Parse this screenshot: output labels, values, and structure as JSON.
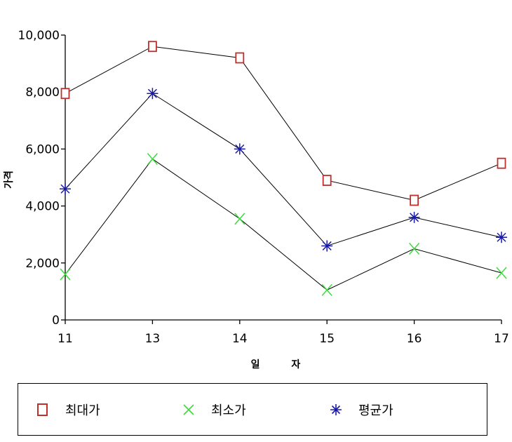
{
  "chart_data": {
    "type": "line",
    "title": "",
    "xlabel": "일 자",
    "ylabel": "가격",
    "categories": [
      "11",
      "13",
      "14",
      "15",
      "16",
      "17"
    ],
    "ylim": [
      0,
      10000
    ],
    "yticks": [
      "0",
      "2,000",
      "4,000",
      "6,000",
      "8,000",
      "10,000"
    ],
    "ytick_values": [
      0,
      2000,
      4000,
      6000,
      8000,
      10000
    ],
    "grid": false,
    "legend_position": "bottom",
    "series": [
      {
        "name": "최대가",
        "marker": "square",
        "color": "#c0302b",
        "values": [
          7950,
          9600,
          9200,
          4900,
          4200,
          5500
        ]
      },
      {
        "name": "최소가",
        "marker": "x",
        "color": "#3ddc3d",
        "values": [
          1600,
          5650,
          3550,
          1050,
          2500,
          1650
        ]
      },
      {
        "name": "평균가",
        "marker": "asterisk",
        "color": "#1a1aa8",
        "values": [
          4600,
          7950,
          6000,
          2600,
          3600,
          2900
        ]
      }
    ]
  }
}
